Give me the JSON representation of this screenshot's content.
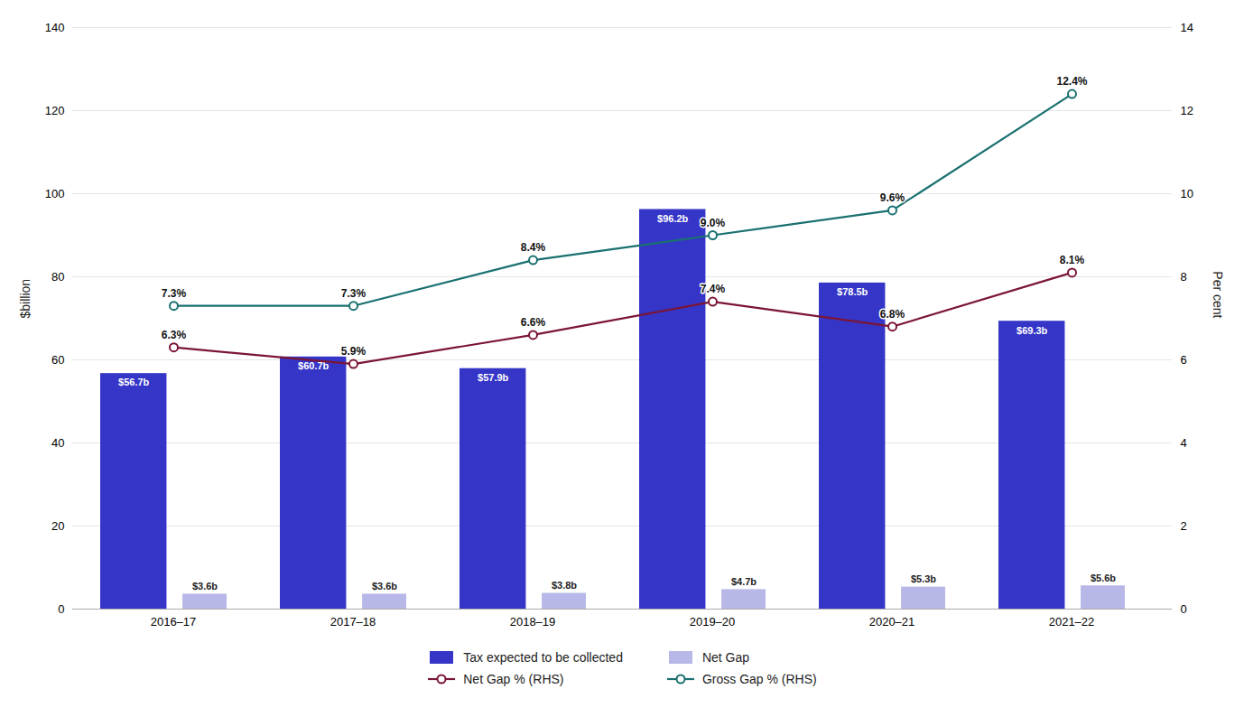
{
  "chart_data": {
    "type": "bar",
    "categories": [
      "2016–17",
      "2017–18",
      "2018–19",
      "2019–20",
      "2020–21",
      "2021–22"
    ],
    "ylabel": "$billion",
    "y2label": "Per cent",
    "ylim": [
      0,
      140
    ],
    "yticks": [
      0,
      20,
      40,
      60,
      80,
      100,
      120,
      140
    ],
    "y2lim": [
      0,
      14
    ],
    "y2ticks": [
      0,
      2,
      4,
      6,
      8,
      10,
      12,
      14
    ],
    "grid": true,
    "legend": "bottom",
    "data_labels": true,
    "series": [
      {
        "name": "Tax expected to be collected",
        "type": "bar",
        "color": "#3535c8",
        "values": [
          56.7,
          60.7,
          57.9,
          96.2,
          78.5,
          69.3
        ],
        "value_labels": [
          "$56.7b",
          "$60.7b",
          "$57.9b",
          "$96.2b",
          "$78.5b",
          "$69.3b"
        ]
      },
      {
        "name": "Net Gap",
        "type": "bar",
        "color": "#b8b8e8",
        "values": [
          3.6,
          3.6,
          3.8,
          4.7,
          5.3,
          5.6
        ],
        "value_labels": [
          "$3.6b",
          "$3.6b",
          "$3.8b",
          "$4.7b",
          "$5.3b",
          "$5.6b"
        ]
      },
      {
        "name": "Net Gap % (RHS)",
        "type": "line",
        "axis": "y2",
        "color": "#7b1535",
        "marker": "circle",
        "values": [
          6.3,
          5.9,
          6.6,
          7.4,
          6.8,
          8.1
        ],
        "value_labels": [
          "6.3%",
          "5.9%",
          "6.6%",
          "7.4%",
          "6.8%",
          "8.1%"
        ]
      },
      {
        "name": "Gross Gap % (RHS)",
        "type": "line",
        "axis": "y2",
        "color": "#1a7070",
        "marker": "circle",
        "values": [
          7.3,
          7.3,
          8.4,
          9.0,
          9.6,
          12.4
        ],
        "value_labels": [
          "7.3%",
          "7.3%",
          "8.4%",
          "9.0%",
          "9.6%",
          "12.4%"
        ]
      }
    ]
  }
}
